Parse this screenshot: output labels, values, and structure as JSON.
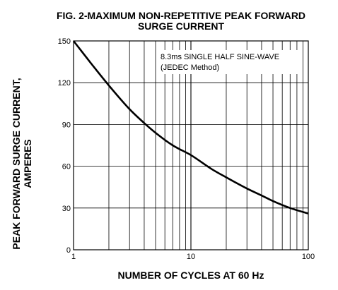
{
  "chart_data": {
    "type": "line",
    "title_line1": "FIG. 2-MAXIMUM NON-REPETITIVE PEAK FORWARD",
    "title_line2": "SURGE CURRENT",
    "xlabel": "NUMBER OF CYCLES AT 60 Hz",
    "ylabel_line1": "PEAK  FORWARD SURGE CURRENT,",
    "ylabel_line2": "AMPERES",
    "annotation_line1": "8.3ms SINGLE HALF SINE-WAVE",
    "annotation_line2": "(JEDEC Method)",
    "x_scale": "log",
    "xlim": [
      1,
      100
    ],
    "ylim": [
      0,
      150
    ],
    "x_ticks": [
      1,
      10,
      100
    ],
    "x_tick_labels": [
      "1",
      "10",
      "100"
    ],
    "y_ticks": [
      0,
      30,
      60,
      90,
      120,
      150
    ],
    "y_tick_labels": [
      "0",
      "30",
      "60",
      "90",
      "120",
      "150"
    ],
    "grid": true,
    "series": [
      {
        "x": [
          1,
          1.5,
          2,
          3,
          4,
          5,
          7,
          10,
          15,
          20,
          30,
          40,
          50,
          70,
          100
        ],
        "y": [
          150,
          131,
          118,
          101,
          91,
          84,
          75,
          68,
          58,
          52,
          44,
          39,
          35,
          30,
          26
        ]
      }
    ]
  }
}
